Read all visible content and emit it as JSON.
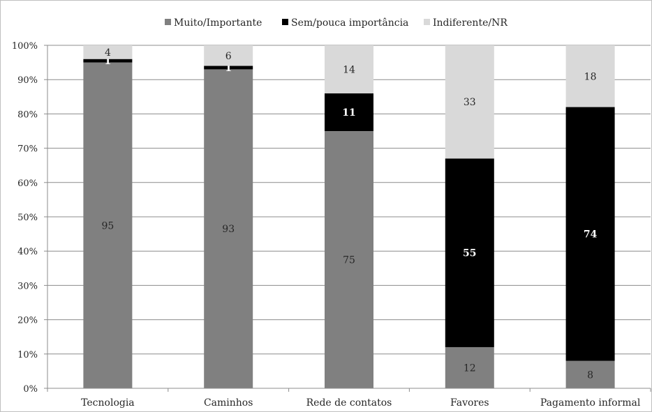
{
  "chart_data": {
    "type": "bar",
    "stacked": true,
    "percent": true,
    "categories": [
      "Tecnologia",
      "Caminhos",
      "Rede de contatos",
      "Favores",
      "Pagamento informal"
    ],
    "series": [
      {
        "name": "Muito/Importante",
        "values": [
          95,
          93,
          75,
          12,
          8
        ],
        "color": "#808080",
        "label_color": "#262626"
      },
      {
        "name": "Sem/pouca importância",
        "values": [
          1,
          1,
          11,
          55,
          74
        ],
        "color": "#000000",
        "label_color": "#ffffff"
      },
      {
        "name": "Indiferente/NR",
        "values": [
          4,
          6,
          14,
          33,
          18
        ],
        "color": "#d9d9d9",
        "label_color": "#262626"
      }
    ],
    "ylim": [
      0,
      100
    ],
    "yticks": [
      "0%",
      "10%",
      "20%",
      "30%",
      "40%",
      "50%",
      "60%",
      "70%",
      "80%",
      "90%",
      "100%"
    ],
    "grid": true,
    "legend_position": "top"
  }
}
